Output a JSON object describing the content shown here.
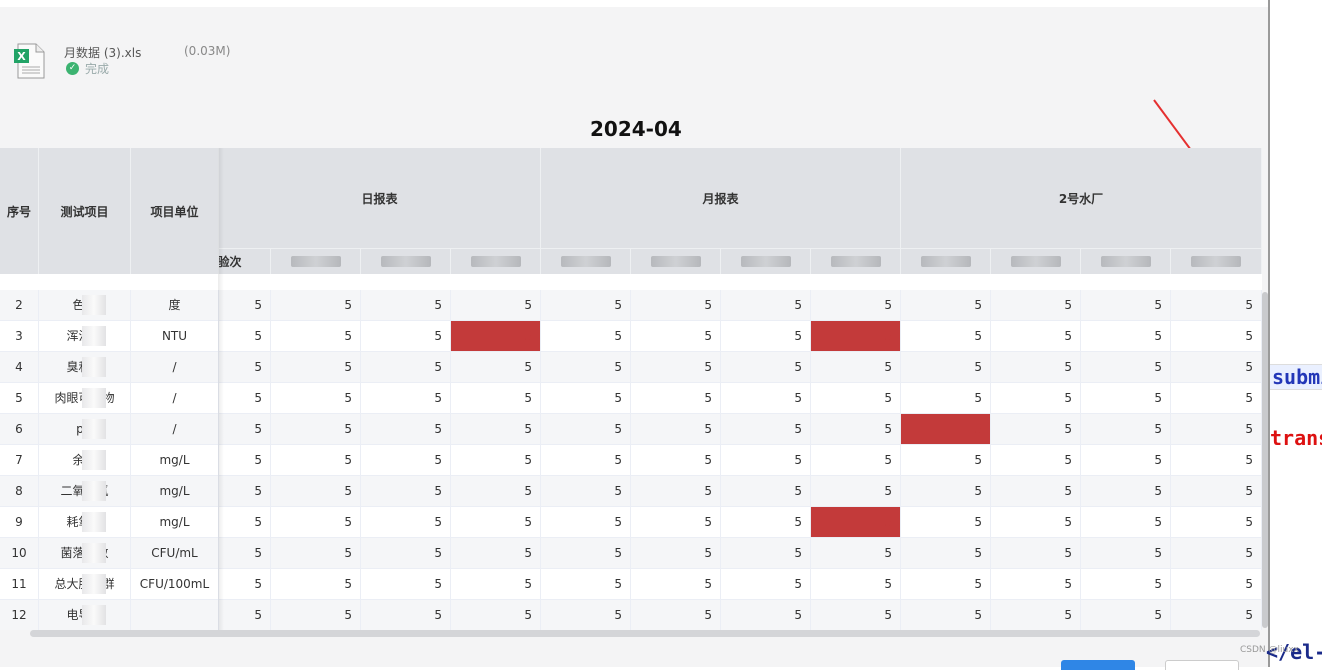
{
  "file": {
    "name": "月数据 (3).xls",
    "size": "(0.03M)",
    "status": "完成",
    "icon": "excel-file-icon",
    "icon_letter": "X"
  },
  "table_title": "2024-04",
  "columns": {
    "index": "序号",
    "item": "测试项目",
    "unit": "项目单位",
    "groups": [
      "日报表",
      "月报表",
      "2号水厂"
    ],
    "sub_visible": [
      "验次",
      "",
      "",
      "",
      "",
      "",
      "",
      "",
      "",
      "",
      "",
      ""
    ]
  },
  "rows": [
    {
      "index": "2",
      "item": "色度",
      "unit": "度"
    },
    {
      "index": "3",
      "item": "浑浊度",
      "unit": "NTU"
    },
    {
      "index": "4",
      "item": "臭和味",
      "unit": "/"
    },
    {
      "index": "5",
      "item": "肉眼可见物",
      "unit": "/"
    },
    {
      "index": "6",
      "item": "pH",
      "unit": "/"
    },
    {
      "index": "7",
      "item": "余氯",
      "unit": "mg/L"
    },
    {
      "index": "8",
      "item": "二氧化氯",
      "unit": "mg/L"
    },
    {
      "index": "9",
      "item": "耗氧量",
      "unit": "mg/L"
    },
    {
      "index": "10",
      "item": "菌落总数",
      "unit": "CFU/mL"
    },
    {
      "index": "11",
      "item": "总大肠菌群",
      "unit": "CFU/100mL"
    },
    {
      "index": "12",
      "item": "电导率",
      "unit": ""
    }
  ],
  "cell_value": "5",
  "highlight_color": "#c33a3a",
  "right_code": {
    "submit": "submit",
    "transform": "transfo",
    "el_close": "</el-"
  },
  "watermark": "CSDN @liuxx"
}
